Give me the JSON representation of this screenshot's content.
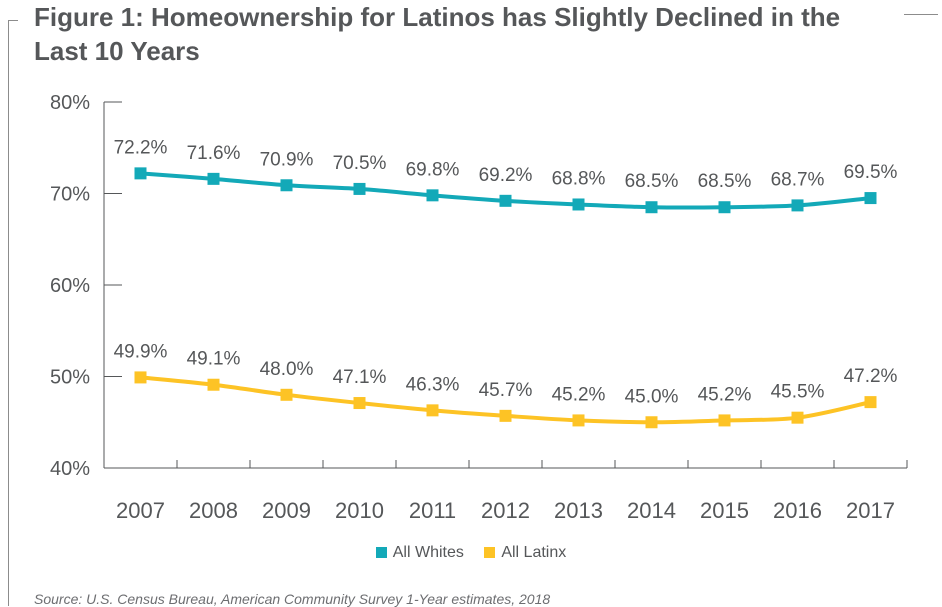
{
  "title": "Figure 1: Homeownership for Latinos has Slightly Declined in the Last 10 Years",
  "source": "Source: U.S. Census Bureau, American Community Survey 1-Year estimates, 2018",
  "chart_data": {
    "type": "line",
    "title": "Figure 1: Homeownership for Latinos has Slightly Declined in the Last 10 Years",
    "xlabel": "",
    "ylabel": "",
    "categories": [
      "2007",
      "2008",
      "2009",
      "2010",
      "2011",
      "2012",
      "2013",
      "2014",
      "2015",
      "2016",
      "2017"
    ],
    "y_ticks": [
      "40%",
      "50%",
      "60%",
      "70%",
      "80%"
    ],
    "ylim": [
      40,
      80
    ],
    "grid": false,
    "legend_position": "bottom",
    "series": [
      {
        "name": "All Whites",
        "color": "#13a9b8",
        "marker": "square",
        "values": [
          72.2,
          71.6,
          70.9,
          70.5,
          69.8,
          69.2,
          68.8,
          68.5,
          68.5,
          68.7,
          69.5
        ],
        "labels": [
          "72.2%",
          "71.6%",
          "70.9%",
          "70.5%",
          "69.8%",
          "69.2%",
          "68.8%",
          "68.5%",
          "68.5%",
          "68.7%",
          "69.5%"
        ]
      },
      {
        "name": "All Latinx",
        "color": "#fdc325",
        "marker": "square",
        "values": [
          49.9,
          49.1,
          48.0,
          47.1,
          46.3,
          45.7,
          45.2,
          45.0,
          45.2,
          45.5,
          47.2
        ],
        "labels": [
          "49.9%",
          "49.1%",
          "48.0%",
          "47.1%",
          "46.3%",
          "45.7%",
          "45.2%",
          "45.0%",
          "45.2%",
          "45.5%",
          "47.2%"
        ]
      }
    ]
  }
}
